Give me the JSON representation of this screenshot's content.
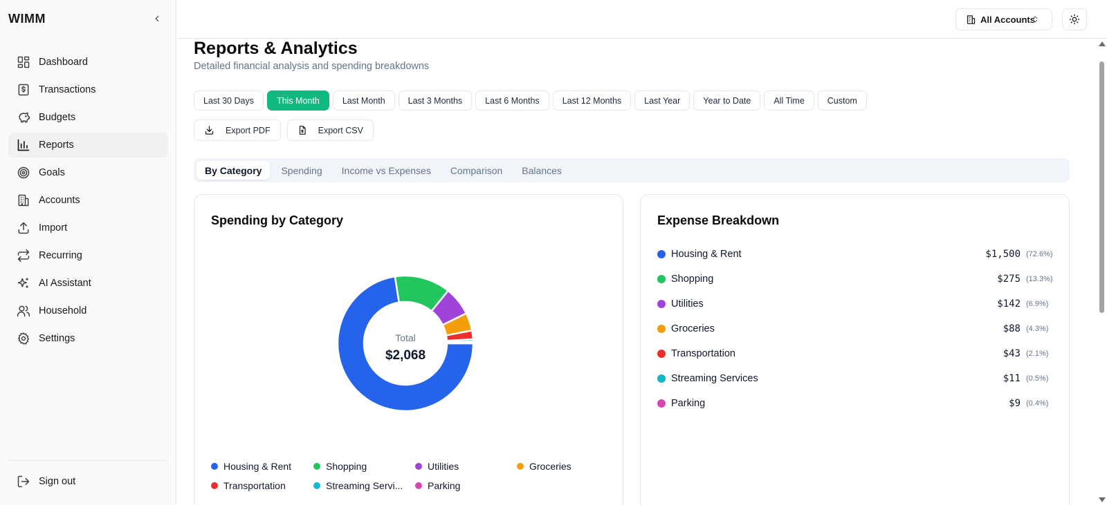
{
  "app": {
    "brand": "WIMM"
  },
  "sidebar": {
    "items": [
      {
        "label": "Dashboard",
        "icon": "dashboard-icon"
      },
      {
        "label": "Transactions",
        "icon": "receipt-icon"
      },
      {
        "label": "Budgets",
        "icon": "piggy-bank-icon"
      },
      {
        "label": "Reports",
        "icon": "bar-chart-icon",
        "active": true
      },
      {
        "label": "Goals",
        "icon": "target-icon"
      },
      {
        "label": "Accounts",
        "icon": "building-icon"
      },
      {
        "label": "Import",
        "icon": "upload-icon"
      },
      {
        "label": "Recurring",
        "icon": "repeat-icon"
      },
      {
        "label": "AI Assistant",
        "icon": "sparkles-icon"
      },
      {
        "label": "Household",
        "icon": "users-icon"
      },
      {
        "label": "Settings",
        "icon": "gear-icon"
      }
    ],
    "signout": "Sign out"
  },
  "header": {
    "account_selector": "All Accounts"
  },
  "page": {
    "title": "Reports & Analytics",
    "subtitle": "Detailed financial analysis and spending breakdowns"
  },
  "ranges": [
    "Last 30 Days",
    "This Month",
    "Last Month",
    "Last 3 Months",
    "Last 6 Months",
    "Last 12 Months",
    "Last Year",
    "Year to Date",
    "All Time",
    "Custom"
  ],
  "active_range": "This Month",
  "exports": {
    "pdf": "Export PDF",
    "csv": "Export CSV"
  },
  "tabs": [
    "By Category",
    "Spending",
    "Income vs Expenses",
    "Comparison",
    "Balances"
  ],
  "active_tab": "By Category",
  "left_card": {
    "title": "Spending by Category",
    "total_label": "Total",
    "total_value": "$2,068"
  },
  "right_card": {
    "title": "Expense Breakdown"
  },
  "chart_data": {
    "type": "pie",
    "title": "Spending by Category",
    "categories": [
      "Housing & Rent",
      "Shopping",
      "Utilities",
      "Groceries",
      "Transportation",
      "Streaming Services",
      "Parking"
    ],
    "legend_labels": [
      "Housing & Rent",
      "Shopping",
      "Utilities",
      "Groceries",
      "Transportation",
      "Streaming Servi...",
      "Parking"
    ],
    "values": [
      1500,
      275,
      142,
      88,
      43,
      11,
      9
    ],
    "amounts": [
      "$1,500",
      "$275",
      "$142",
      "$88",
      "$43",
      "$11",
      "$9"
    ],
    "percents": [
      "(72.6%)",
      "(13.3%)",
      "(6.9%)",
      "(4.3%)",
      "(2.1%)",
      "(0.5%)",
      "(0.4%)"
    ],
    "colors": [
      "#2563eb",
      "#22c55e",
      "#a043d9",
      "#f59e0b",
      "#ef2d2d",
      "#14b8c8",
      "#d946b0"
    ],
    "legend_placement": "bottom"
  }
}
